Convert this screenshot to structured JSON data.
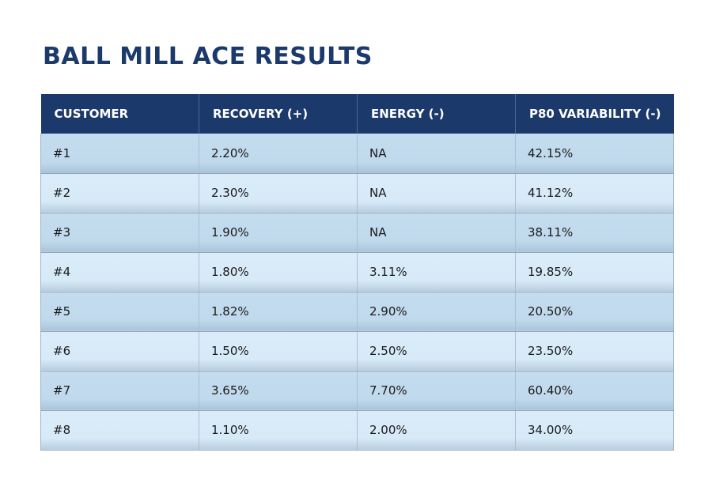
{
  "page": {
    "title": "BALL MILL ACE RESULTS"
  },
  "table": {
    "headers": [
      "CUSTOMER",
      "RECOVERY (+)",
      "ENERGY (-)",
      "P80 VARIABILITY (-)"
    ],
    "rows": [
      [
        "#1",
        "2.20%",
        "NA",
        "42.15%"
      ],
      [
        "#2",
        "2.30%",
        "NA",
        "41.12%"
      ],
      [
        "#3",
        "1.90%",
        "NA",
        "38.11%"
      ],
      [
        "#4",
        "1.80%",
        "3.11%",
        "19.85%"
      ],
      [
        "#5",
        "1.82%",
        "2.90%",
        "20.50%"
      ],
      [
        "#6",
        "1.50%",
        "2.50%",
        "23.50%"
      ],
      [
        "#7",
        "3.65%",
        "7.70%",
        "60.40%"
      ],
      [
        "#8",
        "1.10%",
        "2.00%",
        "34.00%"
      ]
    ]
  },
  "colors": {
    "header_bg": "#1b3a6b",
    "title_text": "#1b3a6b",
    "row_odd": "#c0d9ec",
    "row_even": "#d7eaf8"
  }
}
